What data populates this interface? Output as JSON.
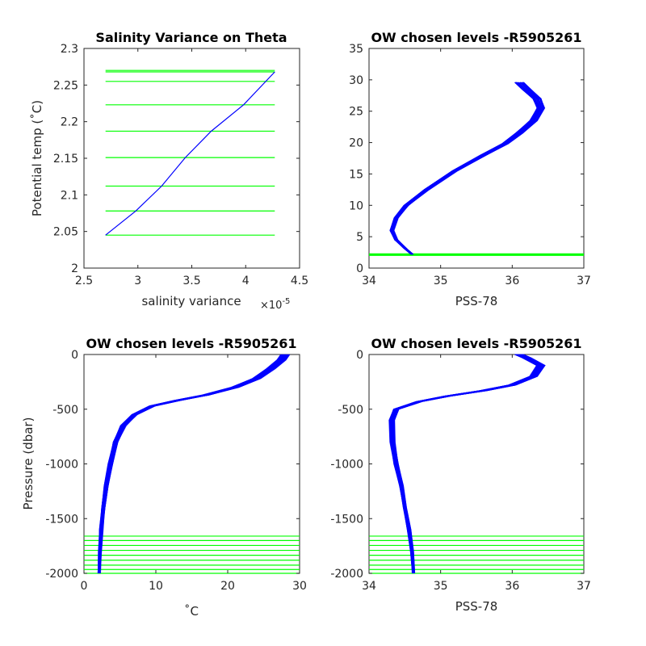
{
  "colors": {
    "profile": "#0000ff",
    "levels": "#00ff00",
    "axes": "#262626",
    "background": "#ffffff"
  },
  "chart_data": [
    {
      "type": "line",
      "title": "Salinity Variance on Theta",
      "xlabel": "salinity variance",
      "x_multiplier": "×10",
      "x_multiplier_exp": "-5",
      "ylabel": "Potential temp (˚C)",
      "xlim": [
        2.5,
        4.5
      ],
      "ylim": [
        2,
        2.3
      ],
      "xticks": [
        "2.5",
        "3",
        "3.5",
        "4",
        "4.5"
      ],
      "yticks": [
        "2",
        "2.05",
        "2.1",
        "2.15",
        "2.2",
        "2.25",
        "2.3"
      ],
      "grid": false,
      "series": [
        {
          "values": [
            [
              2.7,
              2.045
            ],
            [
              2.98,
              2.078
            ],
            [
              3.22,
              2.112
            ],
            [
              3.44,
              2.151
            ],
            [
              3.68,
              2.187
            ],
            [
              3.98,
              2.223
            ],
            [
              4.27,
              2.268
            ]
          ]
        }
      ],
      "chosen_levels": [
        2.045,
        2.078,
        2.112,
        2.151,
        2.187,
        2.223,
        2.255,
        2.268,
        2.27
      ],
      "levels_xrange": [
        2.7,
        4.27
      ]
    },
    {
      "type": "line",
      "title": "OW chosen levels -R5905261",
      "xlabel": "PSS-78",
      "ylabel": "",
      "xlim": [
        34,
        37
      ],
      "ylim": [
        0,
        35
      ],
      "xticks": [
        "34",
        "35",
        "36",
        "37"
      ],
      "yticks": [
        "0",
        "5",
        "10",
        "15",
        "20",
        "25",
        "30",
        "35"
      ],
      "grid": false,
      "series": [
        {
          "values": [
            [
              34.6,
              2.2
            ],
            [
              34.5,
              3.2
            ],
            [
              34.38,
              4.5
            ],
            [
              34.32,
              6.0
            ],
            [
              34.38,
              8.0
            ],
            [
              34.52,
              10.0
            ],
            [
              34.8,
              12.5
            ],
            [
              35.2,
              15.5
            ],
            [
              35.6,
              18.0
            ],
            [
              35.9,
              19.8
            ],
            [
              36.1,
              21.5
            ],
            [
              36.3,
              23.5
            ],
            [
              36.4,
              25.5
            ],
            [
              36.35,
              27.0
            ],
            [
              36.2,
              28.5
            ],
            [
              36.1,
              29.6
            ]
          ]
        }
      ],
      "chosen_levels": [
        2.05,
        2.1,
        2.15,
        2.2,
        2.25
      ],
      "levels_xrange": [
        34,
        37
      ]
    },
    {
      "type": "line",
      "title": "OW chosen levels -R5905261",
      "xlabel": "˚C",
      "ylabel": "Pressure (dbar)",
      "xlim": [
        0,
        30
      ],
      "ylim": [
        -2000,
        0
      ],
      "xticks": [
        "0",
        "10",
        "20",
        "30"
      ],
      "yticks": [
        "-2000",
        "-1500",
        "-1000",
        "-500",
        "0"
      ],
      "grid": false,
      "series": [
        {
          "values": [
            [
              2.1,
              -2000
            ],
            [
              2.2,
              -1800
            ],
            [
              2.4,
              -1600
            ],
            [
              2.7,
              -1400
            ],
            [
              3.1,
              -1200
            ],
            [
              3.7,
              -1000
            ],
            [
              4.4,
              -800
            ],
            [
              5.5,
              -650
            ],
            [
              7.0,
              -550
            ],
            [
              9.5,
              -470
            ],
            [
              13,
              -420
            ],
            [
              17,
              -370
            ],
            [
              21,
              -300
            ],
            [
              24,
              -220
            ],
            [
              26,
              -130
            ],
            [
              27.5,
              -50
            ],
            [
              28,
              0
            ]
          ]
        }
      ],
      "chosen_levels": [
        -1660,
        -1700,
        -1745,
        -1790,
        -1835,
        -1880,
        -1925,
        -1965,
        -2000
      ],
      "levels_xrange": [
        0,
        30
      ]
    },
    {
      "type": "line",
      "title": "OW chosen levels -R5905261",
      "xlabel": "PSS-78",
      "ylabel": "",
      "xlim": [
        34,
        37
      ],
      "ylim": [
        -2000,
        0
      ],
      "xticks": [
        "34",
        "35",
        "36",
        "37"
      ],
      "yticks": [
        "-2000",
        "-1500",
        "-1000",
        "-500",
        "0"
      ],
      "grid": false,
      "series": [
        {
          "values": [
            [
              34.62,
              -2000
            ],
            [
              34.6,
              -1800
            ],
            [
              34.56,
              -1600
            ],
            [
              34.5,
              -1400
            ],
            [
              34.45,
              -1200
            ],
            [
              34.38,
              -1000
            ],
            [
              34.33,
              -800
            ],
            [
              34.32,
              -600
            ],
            [
              34.38,
              -500
            ],
            [
              34.7,
              -430
            ],
            [
              35.1,
              -380
            ],
            [
              35.6,
              -330
            ],
            [
              36.0,
              -280
            ],
            [
              36.3,
              -200
            ],
            [
              36.4,
              -100
            ],
            [
              36.2,
              -30
            ],
            [
              36.1,
              0
            ]
          ]
        }
      ],
      "chosen_levels": [
        -1660,
        -1700,
        -1745,
        -1790,
        -1835,
        -1880,
        -1925,
        -1965,
        -2000
      ],
      "levels_xrange": [
        34,
        37
      ]
    }
  ]
}
